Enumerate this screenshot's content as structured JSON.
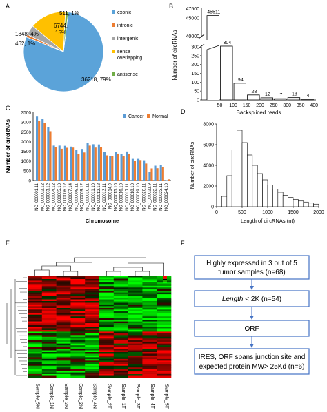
{
  "panels": {
    "A": "A",
    "B": "B",
    "C": "C",
    "D": "D",
    "E": "E",
    "F": "F"
  },
  "colors": {
    "exonic": "#5ba3d9",
    "intronic": "#ed7d31",
    "intergenic": "#a5a5a5",
    "sense_overlapping": "#ffc000",
    "antisense": "#70ad47",
    "cancer": "#5b9bd5",
    "normal": "#ed7d31",
    "heat_high": "#ff0000",
    "heat_low": "#00ff00"
  },
  "chart_data": [
    {
      "type": "pie",
      "panel": "A",
      "slices": [
        {
          "name": "exonic",
          "value": 36218,
          "label": "36218, 79%"
        },
        {
          "name": "intronic",
          "value": 462,
          "label": "462, 1%"
        },
        {
          "name": "intergenic",
          "value": 1848,
          "label": "1848, 4%"
        },
        {
          "name": "sense overlapping",
          "value": 6744,
          "label": "6744, 15%"
        },
        {
          "name": "antisense",
          "value": 511,
          "label": "511, 1%"
        }
      ],
      "legend": [
        "exonic",
        "intronic",
        "intergenic",
        "sense overlapping",
        "antisense"
      ]
    },
    {
      "type": "bar",
      "panel": "B",
      "title": "Backspliced reads",
      "ylabel": "Number of circRNAs",
      "categories": [
        "50",
        "100",
        "150",
        "200",
        "250",
        "300",
        "350",
        "400"
      ],
      "values": [
        45511,
        304,
        94,
        28,
        12,
        7,
        13,
        4
      ],
      "value_labels": [
        "45511",
        "304",
        "94",
        "28",
        "12",
        "7",
        "13",
        "4"
      ],
      "xticks": [
        "50",
        "100",
        "150",
        "200",
        "250",
        "300",
        "350",
        "400"
      ],
      "yticks_upper": [
        "47500",
        "45000",
        "40000"
      ],
      "yticks_lower": [
        "300",
        "250",
        "200",
        "150",
        "100",
        "50",
        "0"
      ],
      "axis_break": true
    },
    {
      "type": "bar",
      "panel": "C",
      "xlabel": "Chromosome",
      "ylabel": "Number of circRNAs",
      "ylim": [
        0,
        3500
      ],
      "yticks": [
        "3500",
        "3000",
        "2500",
        "2000",
        "1500",
        "1000",
        "500",
        "0"
      ],
      "legend": [
        "Cancer",
        "Normal"
      ],
      "categories": [
        "NC_000001.11",
        "NC_000002.12",
        "NC_000003.12",
        "NC_000004.12",
        "NC_000005.10",
        "NC_000006.12",
        "NC_000007.14",
        "NC_000008.11",
        "NC_000009.12",
        "NC_000010.11",
        "NC_000011.10",
        "NC_000012.12",
        "NC_000013.11",
        "NC_000014.9",
        "NC_000015.10",
        "NC_000016.10",
        "NC_000017.11",
        "NC_000018.10",
        "NC_000019.10",
        "NC_000020.11",
        "NC_000021.9",
        "NC_000022.11",
        "NC_000023.11",
        "NC_000024.10"
      ],
      "x_tick_labels": [
        "NC_000001.11",
        "NC_000002.12",
        "NC_000003.12",
        "NC_000004.12",
        "NC_000005.10",
        "NC_000006.12",
        "NC_000007.14",
        "NC_000008.11",
        "NC_000009.12",
        "NC_000010.11",
        "NC_000011.10",
        "NC_000012.12",
        "NC_000013.11",
        "NC_000014.9",
        "NC_000015.10",
        "NC_000016.10",
        "NC_000017.11",
        "NC_000018.10",
        "NC_000019.10",
        "NC_000020.11",
        "NC_000021.9",
        "NC_000022.11",
        "NC_000023.11",
        "NC_000024.10"
      ],
      "series": [
        {
          "name": "Cancer",
          "values": [
            3280,
            3150,
            2730,
            1790,
            1790,
            1780,
            1740,
            1560,
            1620,
            1920,
            1860,
            1850,
            1470,
            1270,
            1450,
            1360,
            1490,
            1110,
            1110,
            1040,
            430,
            760,
            780,
            20
          ]
        },
        {
          "name": "Normal",
          "values": [
            3040,
            2960,
            2530,
            1730,
            1630,
            1680,
            1690,
            1360,
            1440,
            1790,
            1690,
            1720,
            1290,
            1250,
            1380,
            1250,
            1350,
            1020,
            1050,
            870,
            620,
            630,
            680,
            60
          ]
        }
      ]
    },
    {
      "type": "bar",
      "panel": "D",
      "xlabel": "Length of circRNAs (nt)",
      "ylabel": "Number of circRNAs",
      "xlim": [
        0,
        2000
      ],
      "ylim": [
        0,
        8000
      ],
      "xticks": [
        "0",
        "500",
        "1000",
        "1500",
        "2000"
      ],
      "yticks": [
        "8000",
        "6000",
        "4000",
        "2000",
        "0"
      ],
      "bin_width": 100,
      "x": [
        100,
        200,
        300,
        400,
        500,
        600,
        700,
        800,
        900,
        1000,
        1100,
        1200,
        1300,
        1400,
        1500,
        1600,
        1700,
        1800,
        1900
      ],
      "values": [
        1000,
        3000,
        5500,
        7400,
        6200,
        5000,
        4000,
        3200,
        2600,
        2100,
        1700,
        1400,
        1100,
        900,
        700,
        550,
        450,
        350,
        250
      ]
    },
    {
      "type": "heatmap",
      "panel": "E",
      "columns": [
        "Sample_5N",
        "Sample_1N",
        "Sample_3N",
        "Sample_2N",
        "Sample_4N",
        "Sample_2T",
        "Sample_1T",
        "Sample_3T",
        "Sample_4T",
        "Sample_5T"
      ],
      "scale_label": "4 2 0 -2 -4"
    }
  ],
  "flowchart": {
    "boxes": [
      "Highly expressed in 3 out of 5 tumor samples (n=68)",
      "Length < 2K (n=54)",
      "ORF",
      "IRES, ORF spans junction site and expected protein MW> 25Kd (n=6)"
    ]
  }
}
